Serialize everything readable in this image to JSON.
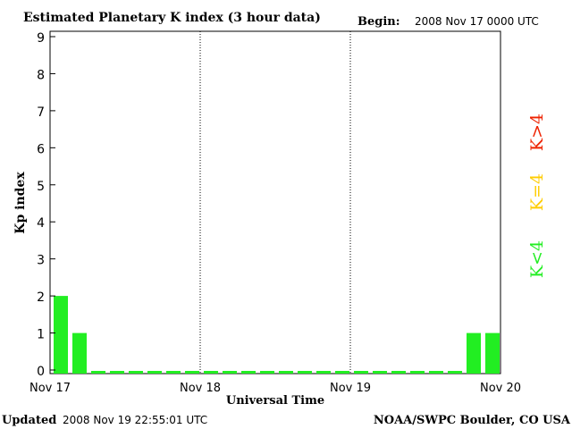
{
  "chart_data": {
    "type": "bar",
    "title": "Estimated Planetary K index (3 hour data)",
    "begin_label": "Begin:",
    "begin_value": "2008 Nov 17 0000 UTC",
    "xlabel": "Universal Time",
    "ylabel": "Kp index",
    "ylim": [
      0,
      9
    ],
    "yticks": [
      "0",
      "1",
      "2",
      "3",
      "4",
      "5",
      "6",
      "7",
      "8",
      "9"
    ],
    "xticks": [
      "Nov 17",
      "Nov 18",
      "Nov 19",
      "Nov 20"
    ],
    "values": [
      2,
      1,
      0,
      0,
      0,
      0,
      0,
      0,
      0,
      0,
      0,
      0,
      0,
      0,
      0,
      0,
      0,
      0,
      0,
      0,
      0,
      0,
      1,
      1
    ],
    "bar_color": "#22ee22",
    "legend": [
      {
        "label": "K<4",
        "color": "#22ee22"
      },
      {
        "label": "K=4",
        "color": "#ffcc00"
      },
      {
        "label": "K>4",
        "color": "#ee2200"
      }
    ],
    "grid": "vertical dotted day separators"
  },
  "footer": {
    "updated_label": "Updated",
    "updated_value": "2008 Nov 19 22:55:01 UTC",
    "source": "NOAA/SWPC Boulder, CO USA"
  }
}
